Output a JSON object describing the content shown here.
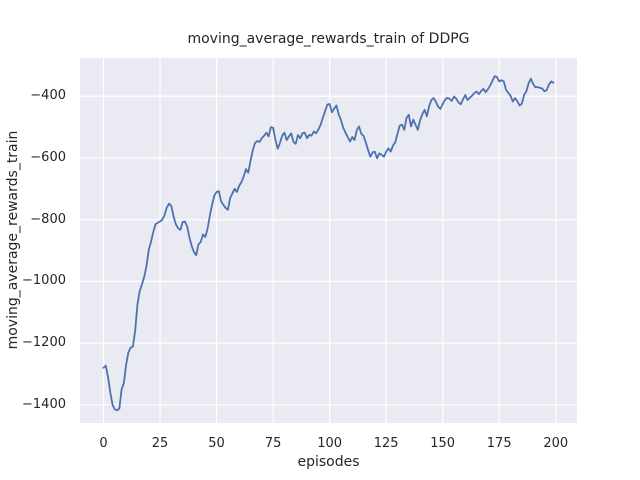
{
  "figure": {
    "title": "moving_average_rewards_train of DDPG",
    "xlabel": "episodes",
    "ylabel": "moving_average_rewards_train"
  },
  "chart_data": {
    "type": "line",
    "title": "moving_average_rewards_train of DDPG",
    "xlabel": "episodes",
    "ylabel": "moving_average_rewards_train",
    "xlim": [
      -10.4,
      209.4
    ],
    "ylim": [
      -1459,
      -276
    ],
    "x_ticks": [
      0,
      25,
      50,
      75,
      100,
      125,
      150,
      175,
      200
    ],
    "y_ticks": [
      -400,
      -600,
      -800,
      -1000,
      -1200,
      -1400
    ],
    "grid": true,
    "legend": false,
    "colors": {
      "line": "#4c72b0",
      "axes_background": "#eaeaf2",
      "grid": "#ffffff",
      "text": "#262626",
      "figure_background": "#ffffff"
    },
    "line_width": 1.8,
    "series": [
      {
        "name": "moving_average_rewards_train",
        "x_start": 0,
        "x_step": 1,
        "values": [
          -1280,
          -1273,
          -1310,
          -1360,
          -1400,
          -1415,
          -1418,
          -1412,
          -1350,
          -1330,
          -1270,
          -1230,
          -1215,
          -1211,
          -1160,
          -1075,
          -1032,
          -1010,
          -985,
          -950,
          -898,
          -872,
          -840,
          -815,
          -810,
          -806,
          -800,
          -785,
          -760,
          -748,
          -756,
          -790,
          -815,
          -828,
          -833,
          -808,
          -806,
          -822,
          -858,
          -885,
          -905,
          -915,
          -880,
          -872,
          -848,
          -856,
          -830,
          -788,
          -752,
          -722,
          -710,
          -708,
          -740,
          -752,
          -762,
          -768,
          -730,
          -715,
          -700,
          -710,
          -690,
          -678,
          -660,
          -636,
          -648,
          -610,
          -575,
          -552,
          -545,
          -548,
          -536,
          -528,
          -518,
          -530,
          -500,
          -502,
          -540,
          -570,
          -552,
          -528,
          -518,
          -542,
          -530,
          -520,
          -548,
          -554,
          -526,
          -536,
          -520,
          -518,
          -536,
          -525,
          -528,
          -514,
          -520,
          -508,
          -493,
          -470,
          -448,
          -427,
          -425,
          -452,
          -440,
          -430,
          -458,
          -477,
          -502,
          -518,
          -532,
          -547,
          -532,
          -542,
          -510,
          -498,
          -522,
          -528,
          -550,
          -574,
          -596,
          -582,
          -580,
          -601,
          -585,
          -590,
          -596,
          -580,
          -569,
          -579,
          -560,
          -550,
          -522,
          -495,
          -492,
          -509,
          -470,
          -460,
          -498,
          -476,
          -492,
          -509,
          -478,
          -458,
          -444,
          -465,
          -432,
          -412,
          -406,
          -418,
          -434,
          -441,
          -425,
          -412,
          -405,
          -408,
          -415,
          -401,
          -408,
          -420,
          -426,
          -410,
          -396,
          -412,
          -405,
          -398,
          -390,
          -385,
          -393,
          -383,
          -376,
          -387,
          -377,
          -365,
          -350,
          -335,
          -338,
          -352,
          -348,
          -352,
          -379,
          -389,
          -398,
          -417,
          -406,
          -416,
          -430,
          -424,
          -396,
          -384,
          -358,
          -343,
          -360,
          -371,
          -370,
          -373,
          -375,
          -384,
          -380,
          -362,
          -352,
          -356
        ]
      }
    ]
  }
}
